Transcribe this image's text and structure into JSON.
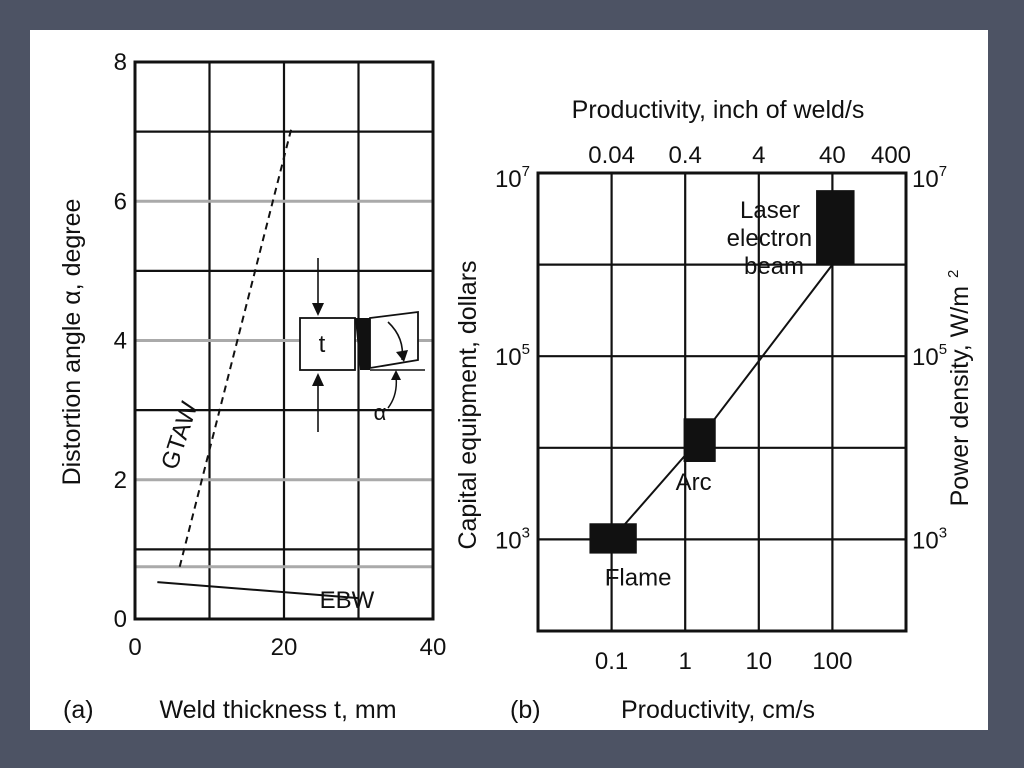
{
  "colors": {
    "slide_background": "#4d5364",
    "panel": "#ffffff",
    "ink": "#111111",
    "grid_grey": "#aaaaaa"
  },
  "chart_data": [
    {
      "type": "line",
      "panel_label": "(a)",
      "xlabel": "Weld thickness t, mm",
      "ylabel": "Distortion angle α, degree",
      "xlim": [
        0,
        40
      ],
      "ylim": [
        0,
        8
      ],
      "x_ticks": [
        0,
        20,
        40
      ],
      "y_ticks": [
        0,
        2,
        4,
        6,
        8
      ],
      "grid": true,
      "series": [
        {
          "name": "GTAW",
          "style": "dashed",
          "x": [
            6,
            21
          ],
          "y": [
            0.75,
            7.05
          ]
        },
        {
          "name": "EBW",
          "style": "solid",
          "x": [
            3,
            30
          ],
          "y": [
            0.53,
            0.3
          ]
        }
      ],
      "inset": {
        "thickness_label": "t",
        "angle_label": "α"
      }
    },
    {
      "type": "line",
      "panel_label": "(b)",
      "xlabel": "Productivity, cm/s",
      "x2label": "Productivity, inch of weld/s",
      "ylabel": "Capital equipment, dollars",
      "y2label": "Power density, W/m",
      "y2label_sup": "2",
      "xscale": "log",
      "yscale": "log",
      "xlim": [
        0.01,
        1000
      ],
      "ylim": [
        100,
        10000000
      ],
      "x_ticks": [
        "0.1",
        "1",
        "10",
        "100"
      ],
      "x2_ticks": [
        "0.04",
        "0.4",
        "4",
        "40",
        "400"
      ],
      "y_ticks": [
        {
          "base": "10",
          "exp": "7"
        },
        {
          "base": "10",
          "exp": "5"
        },
        {
          "base": "10",
          "exp": "3"
        }
      ],
      "y2_ticks": [
        {
          "base": "10",
          "exp": "7"
        },
        {
          "base": "10",
          "exp": "5"
        },
        {
          "base": "10",
          "exp": "3"
        }
      ],
      "grid": true,
      "series": [
        {
          "x": [
            0.1,
            1.5,
            100
          ],
          "y": [
            1000,
            12000,
            1000000
          ]
        }
      ],
      "regions": [
        {
          "label_lines": [
            "Flame"
          ],
          "x_range": [
            0.05,
            0.22
          ],
          "y_range": [
            700,
            1500
          ]
        },
        {
          "label_lines": [
            "Arc"
          ],
          "x_range": [
            0.95,
            2.6
          ],
          "y_range": [
            7000,
            21000
          ]
        },
        {
          "label_lines": [
            "Laser",
            "electron",
            "beam"
          ],
          "x_range": [
            60,
            200
          ],
          "y_range": [
            1000000,
            6500000
          ]
        }
      ]
    }
  ]
}
